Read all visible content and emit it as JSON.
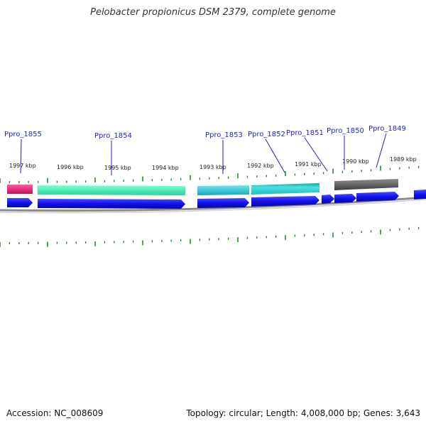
{
  "title": "Pelobacter propionicus DSM 2379, complete genome",
  "footer": {
    "accession": "Accession: NC_008609",
    "summary": "Topology: circular; Length: 4,008,000 bp; Genes: 3,643"
  },
  "colors": {
    "pink": "#e8186f",
    "seagreen": "#3cf0b0",
    "cyan": "#2ec8d6",
    "teal": "#22c0c0",
    "gray": "#666666",
    "blue": "#1010ee",
    "tick": "#2a8a2a",
    "backbone": "#8c8c8c",
    "label": "#1f1fcc"
  },
  "kbp_labels": [
    {
      "text": "1997 kbp"
    },
    {
      "text": "1996 kbp"
    },
    {
      "text": "1995 kbp"
    },
    {
      "text": "1994 kbp"
    },
    {
      "text": "1993 kbp"
    },
    {
      "text": "1992 kbp"
    },
    {
      "text": "1991 kbp"
    },
    {
      "text": "1990 kbp"
    },
    {
      "text": "1989 kbp"
    }
  ],
  "gene_labels": [
    {
      "text": "Ppro_1855"
    },
    {
      "text": "Ppro_1854"
    },
    {
      "text": "Ppro_1853"
    },
    {
      "text": "Ppro_1852"
    },
    {
      "text": "Ppro_1851"
    },
    {
      "text": "Ppro_1850"
    },
    {
      "text": "Ppro_1849"
    }
  ],
  "features": [
    {
      "name": "Ppro_1855",
      "color": "pink"
    },
    {
      "name": "Ppro_1854",
      "color": "seagreen"
    },
    {
      "name": "Ppro_1853",
      "color": "cyan"
    },
    {
      "name": "Ppro_1852",
      "color": "teal"
    },
    {
      "name": "Ppro_1849",
      "color": "gray"
    }
  ]
}
